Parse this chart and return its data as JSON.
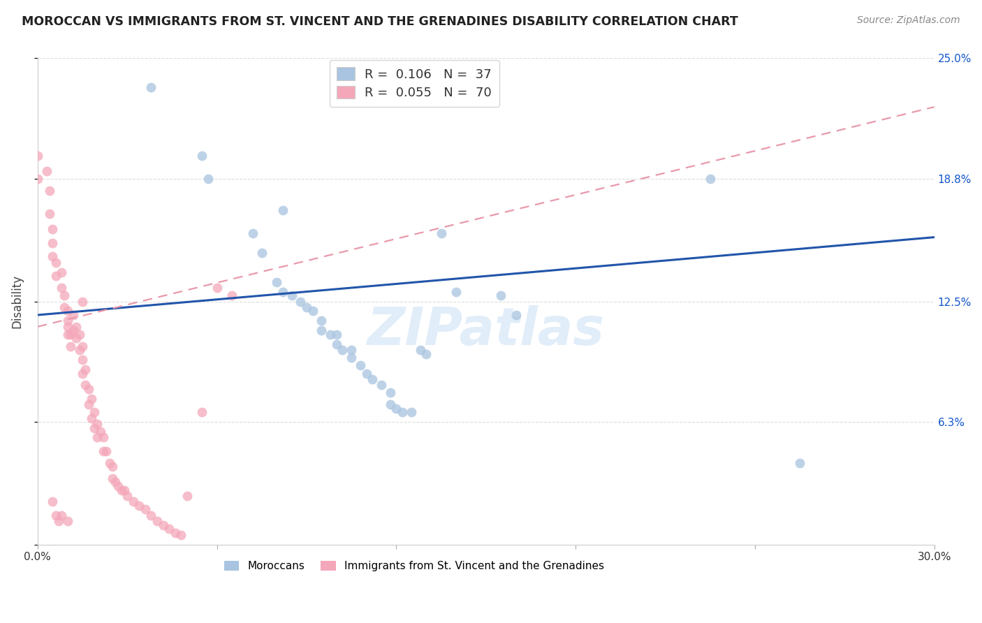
{
  "title": "MOROCCAN VS IMMIGRANTS FROM ST. VINCENT AND THE GRENADINES DISABILITY CORRELATION CHART",
  "source": "Source: ZipAtlas.com",
  "ylabel": "Disability",
  "xlim": [
    0.0,
    0.3
  ],
  "ylim": [
    0.0,
    0.25
  ],
  "yticks": [
    0.0,
    0.063,
    0.125,
    0.188,
    0.25
  ],
  "ytick_labels": [
    "",
    "6.3%",
    "12.5%",
    "18.8%",
    "25.0%"
  ],
  "xticks": [
    0.0,
    0.06,
    0.12,
    0.18,
    0.24,
    0.3
  ],
  "xtick_labels": [
    "0.0%",
    "",
    "",
    "",
    "",
    "30.0%"
  ],
  "legend_r1": "0.106",
  "legend_n1": "37",
  "legend_r2": "0.055",
  "legend_n2": "70",
  "blue_color": "#A8C4E0",
  "pink_color": "#F4A7B9",
  "blue_line_color": "#2255AA",
  "pink_line_color": "#E899AA",
  "watermark": "ZIPatlas",
  "blue_R": 0.106,
  "pink_R": 0.055,
  "blue_points_x": [
    0.038,
    0.055,
    0.057,
    0.082,
    0.072,
    0.075,
    0.08,
    0.082,
    0.085,
    0.088,
    0.09,
    0.092,
    0.095,
    0.095,
    0.098,
    0.1,
    0.1,
    0.102,
    0.105,
    0.105,
    0.108,
    0.11,
    0.112,
    0.115,
    0.118,
    0.118,
    0.12,
    0.122,
    0.125,
    0.128,
    0.13,
    0.135,
    0.14,
    0.155,
    0.16,
    0.225,
    0.255
  ],
  "blue_points_y": [
    0.235,
    0.2,
    0.188,
    0.172,
    0.16,
    0.15,
    0.135,
    0.13,
    0.128,
    0.125,
    0.122,
    0.12,
    0.115,
    0.11,
    0.108,
    0.108,
    0.103,
    0.1,
    0.1,
    0.096,
    0.092,
    0.088,
    0.085,
    0.082,
    0.078,
    0.072,
    0.07,
    0.068,
    0.068,
    0.1,
    0.098,
    0.16,
    0.13,
    0.128,
    0.118,
    0.188,
    0.042
  ],
  "pink_points_x": [
    0.0,
    0.0,
    0.003,
    0.004,
    0.004,
    0.005,
    0.005,
    0.005,
    0.006,
    0.006,
    0.008,
    0.008,
    0.009,
    0.009,
    0.01,
    0.01,
    0.01,
    0.01,
    0.011,
    0.011,
    0.012,
    0.012,
    0.013,
    0.013,
    0.014,
    0.014,
    0.015,
    0.015,
    0.015,
    0.016,
    0.016,
    0.017,
    0.017,
    0.018,
    0.018,
    0.019,
    0.019,
    0.02,
    0.02,
    0.021,
    0.022,
    0.022,
    0.023,
    0.024,
    0.025,
    0.025,
    0.026,
    0.027,
    0.028,
    0.029,
    0.03,
    0.032,
    0.034,
    0.036,
    0.038,
    0.04,
    0.042,
    0.044,
    0.046,
    0.048,
    0.05,
    0.055,
    0.06,
    0.065,
    0.005,
    0.006,
    0.007,
    0.008,
    0.01,
    0.015
  ],
  "pink_points_y": [
    0.2,
    0.188,
    0.192,
    0.182,
    0.17,
    0.162,
    0.155,
    0.148,
    0.145,
    0.138,
    0.14,
    0.132,
    0.128,
    0.122,
    0.12,
    0.115,
    0.112,
    0.108,
    0.108,
    0.102,
    0.118,
    0.11,
    0.112,
    0.106,
    0.108,
    0.1,
    0.102,
    0.095,
    0.088,
    0.09,
    0.082,
    0.08,
    0.072,
    0.075,
    0.065,
    0.068,
    0.06,
    0.062,
    0.055,
    0.058,
    0.055,
    0.048,
    0.048,
    0.042,
    0.04,
    0.034,
    0.032,
    0.03,
    0.028,
    0.028,
    0.025,
    0.022,
    0.02,
    0.018,
    0.015,
    0.012,
    0.01,
    0.008,
    0.006,
    0.005,
    0.025,
    0.068,
    0.132,
    0.128,
    0.022,
    0.015,
    0.012,
    0.015,
    0.012,
    0.125
  ]
}
